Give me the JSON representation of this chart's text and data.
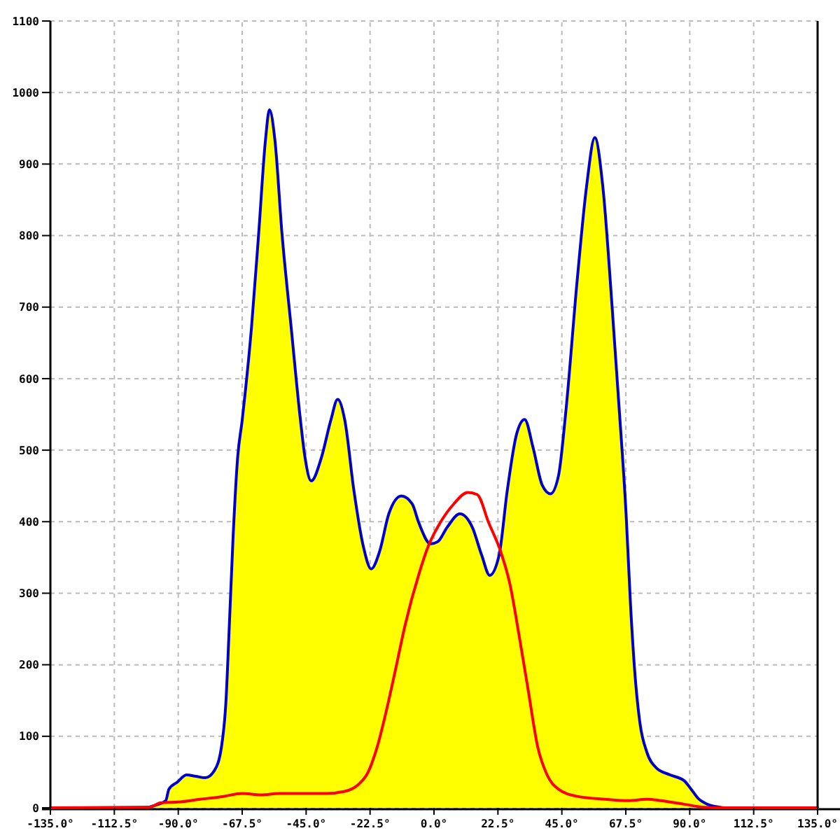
{
  "chart_data": {
    "type": "line",
    "xlim": [
      -135,
      135
    ],
    "ylim": [
      0,
      1100
    ],
    "xticks": [
      {
        "value": -135,
        "label": "-135.0°"
      },
      {
        "value": -112.5,
        "label": "-112.5°"
      },
      {
        "value": -90,
        "label": "-90.0°"
      },
      {
        "value": -67.5,
        "label": "-67.5°"
      },
      {
        "value": -45,
        "label": "-45.0°"
      },
      {
        "value": -22.5,
        "label": "-22.5°"
      },
      {
        "value": 0,
        "label": "0.0°"
      },
      {
        "value": 22.5,
        "label": "22.5°"
      },
      {
        "value": 45,
        "label": "45.0°"
      },
      {
        "value": 67.5,
        "label": "67.5°"
      },
      {
        "value": 90,
        "label": "90.0°"
      },
      {
        "value": 112.5,
        "label": "112.5°"
      },
      {
        "value": 135,
        "label": "135.0°"
      }
    ],
    "yticks": [
      0,
      100,
      200,
      300,
      400,
      500,
      600,
      700,
      800,
      900,
      1000,
      1100
    ],
    "grid": true,
    "marker": "none",
    "line_style": "solid",
    "series": [
      {
        "type": "area",
        "color": "#ffff00",
        "x": [
          -101,
          -98.5,
          -94.4,
          -93.3,
          -90.3,
          -87.1,
          -83.8,
          -80.5,
          -77.3,
          -74.8,
          -73.2,
          -72.1,
          -70.7,
          -69.1,
          -67.5,
          -64.2,
          -61.7,
          -59.3,
          -57.9,
          -56,
          -53.5,
          -50.3,
          -47,
          -45.4,
          -43.2,
          -39.6,
          -36.3,
          -33.9,
          -31.4,
          -28.2,
          -24.9,
          -22.1,
          -19.1,
          -15.9,
          -11.5,
          -7.7,
          -5.3,
          -1.2,
          1.3,
          4.6,
          9.1,
          13.5,
          16.8,
          19.6,
          22.9,
          25.8,
          29.1,
          31.9,
          34.9,
          38.1,
          41,
          43.8,
          46.3,
          50.4,
          53.7,
          56.6,
          59.4,
          62.6,
          65.1,
          67.6,
          69.2,
          70.8,
          72.5,
          74.9,
          78.2,
          83.1,
          88,
          90.5,
          93,
          96.2,
          100.3,
          102
        ],
        "values": [
          0,
          3,
          10,
          26,
          36,
          46,
          44,
          42,
          52,
          85,
          150,
          248,
          379,
          490,
          542,
          673,
          803,
          934,
          976,
          934,
          803,
          673,
          542,
          490,
          457,
          490,
          542,
          571,
          542,
          444,
          366,
          334,
          359,
          411,
          436,
          425,
          398,
          369,
          372,
          392,
          411,
          392,
          353,
          325,
          353,
          444,
          523,
          543,
          503,
          451,
          439,
          464,
          550,
          738,
          869,
          937,
          869,
          705,
          562,
          411,
          281,
          183,
          118,
          78,
          56,
          46,
          38,
          26,
          13,
          5,
          1,
          0
        ]
      },
      {
        "color": "#ff0000",
        "x": [
          -135,
          -100.2,
          -96.1,
          -90.3,
          -82.2,
          -74,
          -67.5,
          -60.9,
          -54.3,
          -38,
          -31.4,
          -26.5,
          -23.3,
          -20,
          -16.7,
          -13.4,
          -10.2,
          -5.3,
          -2,
          2.1,
          7,
          11.9,
          15.2,
          19.3,
          23.4,
          26.7,
          29.9,
          33.2,
          36.5,
          39.8,
          43.8,
          50.4,
          60.2,
          68.4,
          74.9,
          79.8,
          88,
          94.6,
          99.5,
          135
        ],
        "values": [
          0,
          1,
          7,
          8,
          12,
          16,
          20,
          18,
          20,
          20,
          23,
          33,
          49,
          85,
          137,
          196,
          255,
          327,
          366,
          398,
          425,
          441,
          438,
          398,
          359,
          313,
          242,
          163,
          85,
          46,
          26,
          16,
          12,
          10,
          12,
          10,
          5,
          1,
          0,
          0
        ]
      }
    ]
  }
}
